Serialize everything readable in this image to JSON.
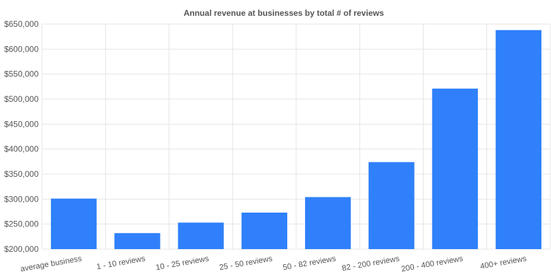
{
  "chart_data": {
    "type": "bar",
    "title": "Annual revenue at businesses by total # of reviews",
    "xlabel": "",
    "ylabel": "",
    "categories": [
      "average business",
      "1 - 10 reviews",
      "10 - 25 reviews",
      "25 - 50 reviews",
      "50 - 82 reviews",
      "82 - 200 reviews",
      "200 - 400 reviews",
      "400+ reviews"
    ],
    "values": [
      301000,
      232000,
      253000,
      273000,
      304000,
      374000,
      521000,
      638000
    ],
    "ylim": [
      200000,
      650000
    ],
    "yticks": [
      200000,
      250000,
      300000,
      350000,
      400000,
      450000,
      500000,
      550000,
      600000,
      650000
    ],
    "ytick_labels": [
      "$200,000",
      "$250,000",
      "$300,000",
      "$350,000",
      "$400,000",
      "$450,000",
      "$500,000",
      "$550,000",
      "$600,000",
      "$650,000"
    ],
    "bar_color": "#2f80fa",
    "grid": true,
    "legend": "none"
  }
}
